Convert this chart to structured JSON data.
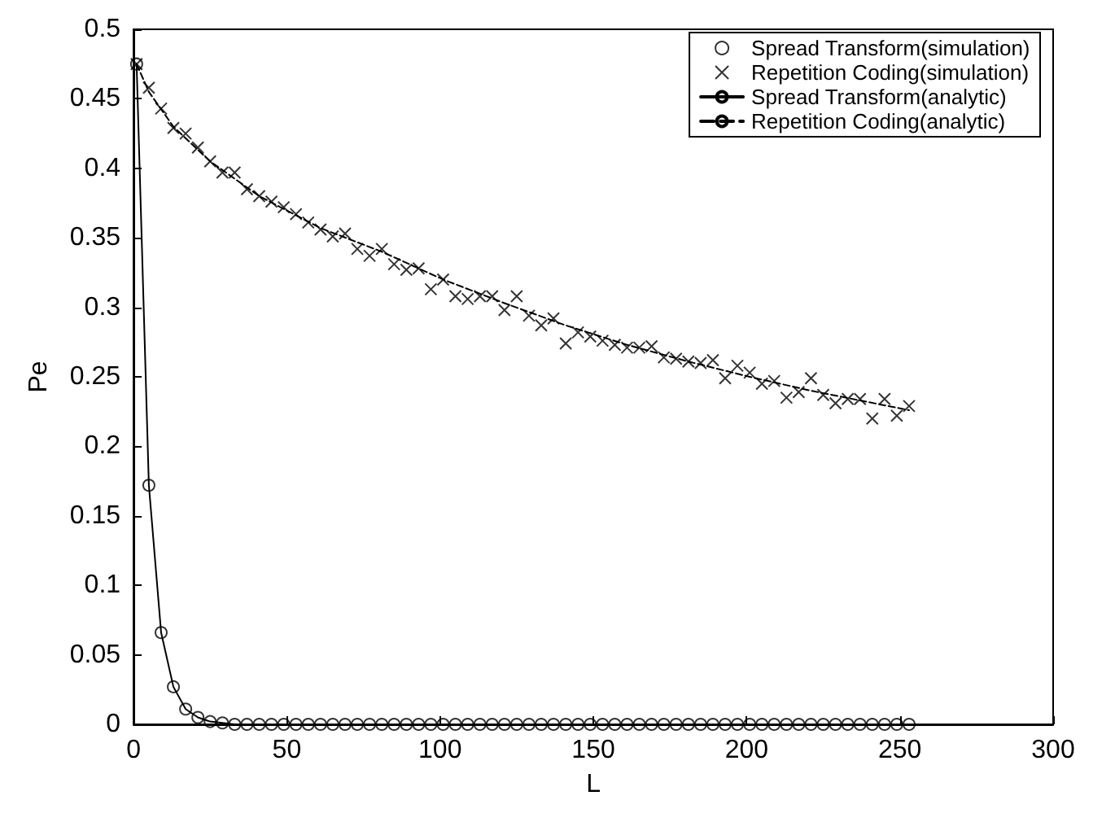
{
  "chart_data": {
    "type": "scatter",
    "xlabel": "L",
    "ylabel": "Pe",
    "xlim": [
      0,
      300
    ],
    "xticks": [
      0,
      50,
      100,
      150,
      200,
      250,
      300
    ],
    "ylim": [
      0,
      0.5
    ],
    "yticks": [
      0,
      0.05,
      0.1,
      0.15,
      0.2,
      0.25,
      0.3,
      0.35,
      0.4,
      0.45,
      0.5
    ],
    "grid": false,
    "legend": "top right",
    "series": [
      {
        "name": "Spread Transform(simulation)",
        "type": "scatter",
        "marker": "circle",
        "color": "#000000",
        "x": [
          1,
          5,
          9,
          13,
          17,
          21,
          25,
          29,
          33,
          37,
          41,
          45,
          49,
          53,
          57,
          61,
          65,
          69,
          73,
          77,
          81,
          85,
          89,
          93,
          97,
          101,
          105,
          109,
          113,
          117,
          121,
          125,
          129,
          133,
          137,
          141,
          145,
          149,
          153,
          157,
          161,
          165,
          169,
          173,
          177,
          181,
          185,
          189,
          193,
          197,
          201,
          205,
          209,
          213,
          217,
          221,
          225,
          229,
          233,
          237,
          241,
          245,
          249,
          253
        ],
        "values": [
          0.475,
          0.172,
          0.066,
          0.027,
          0.011,
          0.005,
          0.002,
          0.001,
          0,
          0,
          0,
          0,
          0,
          0,
          0,
          0,
          0,
          0,
          0,
          0,
          0,
          0,
          0,
          0,
          0,
          0,
          0,
          0,
          0,
          0,
          0,
          0,
          0,
          0,
          0,
          0,
          0,
          0,
          0,
          0,
          0,
          0,
          0,
          0,
          0,
          0,
          0,
          0,
          0,
          0,
          0,
          0,
          0,
          0,
          0,
          0,
          0,
          0,
          0,
          0,
          0,
          0,
          0,
          0
        ]
      },
      {
        "name": "Repetition Coding(simulation)",
        "type": "scatter",
        "marker": "cross",
        "color": "#000000",
        "x": [
          1,
          5,
          9,
          13,
          17,
          21,
          25,
          29,
          33,
          37,
          41,
          45,
          49,
          53,
          57,
          61,
          65,
          69,
          73,
          77,
          81,
          85,
          89,
          93,
          97,
          101,
          105,
          109,
          113,
          117,
          121,
          125,
          129,
          133,
          137,
          141,
          145,
          149,
          153,
          157,
          161,
          165,
          169,
          173,
          177,
          181,
          185,
          189,
          193,
          197,
          201,
          205,
          209,
          213,
          217,
          221,
          225,
          229,
          233,
          237,
          241,
          245,
          249,
          253
        ],
        "values": [
          0.475,
          0.458,
          0.443,
          0.429,
          0.425,
          0.415,
          0.405,
          0.397,
          0.397,
          0.385,
          0.38,
          0.376,
          0.372,
          0.367,
          0.361,
          0.356,
          0.351,
          0.353,
          0.342,
          0.337,
          0.342,
          0.331,
          0.327,
          0.328,
          0.313,
          0.32,
          0.308,
          0.306,
          0.308,
          0.308,
          0.298,
          0.308,
          0.294,
          0.287,
          0.292,
          0.274,
          0.282,
          0.279,
          0.276,
          0.273,
          0.271,
          0.271,
          0.272,
          0.264,
          0.263,
          0.261,
          0.26,
          0.262,
          0.249,
          0.258,
          0.253,
          0.245,
          0.247,
          0.235,
          0.239,
          0.249,
          0.237,
          0.231,
          0.234,
          0.234,
          0.22,
          0.234,
          0.222,
          0.229
        ]
      },
      {
        "name": "Spread Transform(analytic)",
        "type": "line",
        "marker": "none",
        "line_style": "solid",
        "color": "#000000",
        "x": [
          1,
          5,
          9,
          13,
          17,
          21,
          25,
          29,
          33,
          253
        ],
        "values": [
          0.475,
          0.172,
          0.066,
          0.027,
          0.011,
          0.005,
          0.002,
          0.001,
          0,
          0
        ]
      },
      {
        "name": "Repetition Coding(analytic)",
        "type": "line",
        "marker": "none",
        "line_style": "dashed",
        "color": "#000000",
        "x": [
          1,
          5,
          13,
          25,
          41,
          61,
          81,
          101,
          121,
          141,
          161,
          181,
          201,
          221,
          253
        ],
        "values": [
          0.475,
          0.455,
          0.43,
          0.405,
          0.38,
          0.357,
          0.34,
          0.32,
          0.303,
          0.287,
          0.273,
          0.261,
          0.25,
          0.24,
          0.226
        ]
      }
    ]
  }
}
